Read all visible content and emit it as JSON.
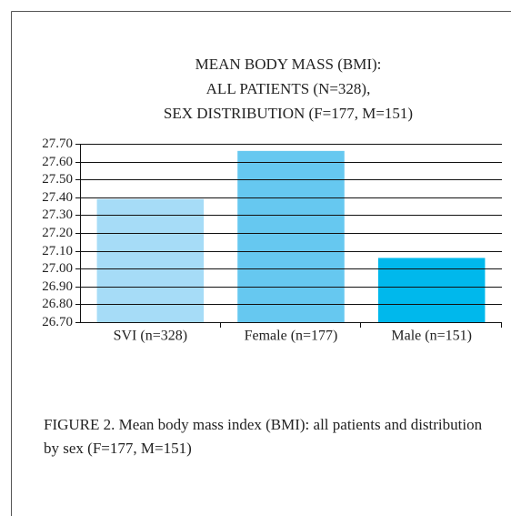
{
  "chart_data": {
    "type": "bar",
    "title": [
      "MEAN BODY MASS (BMI):",
      "ALL PATIENTS (N=328),",
      "SEX DISTRIBUTION (F=177, M=151)"
    ],
    "categories": [
      "SVI (n=328)",
      "Female (n=177)",
      "Male (n=151)"
    ],
    "values": [
      27.39,
      27.66,
      27.06
    ],
    "colors": [
      "#a6dcf7",
      "#66c8f0",
      "#00b8ec"
    ],
    "ylim": [
      26.7,
      27.7
    ],
    "yticks": [
      {
        "value": 26.7,
        "label": "26.70"
      },
      {
        "value": 26.8,
        "label": "26.80"
      },
      {
        "value": 26.9,
        "label": "26.90"
      },
      {
        "value": 27.0,
        "label": "27.00"
      },
      {
        "value": 27.1,
        "label": "27.10"
      },
      {
        "value": 27.2,
        "label": "27.20"
      },
      {
        "value": 27.3,
        "label": "27.30"
      },
      {
        "value": 27.4,
        "label": "27.40"
      },
      {
        "value": 27.5,
        "label": "27.50"
      },
      {
        "value": 27.6,
        "label": "27.60"
      },
      {
        "value": 27.7,
        "label": "27.70"
      }
    ],
    "grid": true,
    "caption": "FIGURE 2. Mean body mass index (BMI): all patients and distribution by sex (F=177, M=151)"
  }
}
